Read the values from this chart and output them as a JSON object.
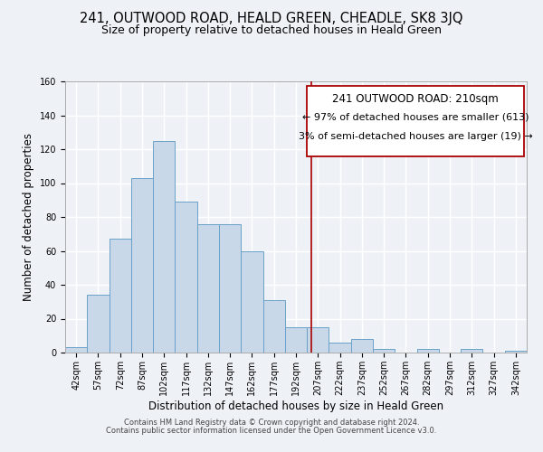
{
  "title": "241, OUTWOOD ROAD, HEALD GREEN, CHEADLE, SK8 3JQ",
  "subtitle": "Size of property relative to detached houses in Heald Green",
  "xlabel": "Distribution of detached houses by size in Heald Green",
  "ylabel": "Number of detached properties",
  "bin_labels": [
    "42sqm",
    "57sqm",
    "72sqm",
    "87sqm",
    "102sqm",
    "117sqm",
    "132sqm",
    "147sqm",
    "162sqm",
    "177sqm",
    "192sqm",
    "207sqm",
    "222sqm",
    "237sqm",
    "252sqm",
    "267sqm",
    "282sqm",
    "297sqm",
    "312sqm",
    "327sqm",
    "342sqm"
  ],
  "bar_values": [
    3,
    34,
    67,
    103,
    125,
    89,
    76,
    76,
    60,
    31,
    15,
    15,
    6,
    8,
    2,
    0,
    2,
    0,
    2,
    0,
    1
  ],
  "bin_edges": [
    42,
    57,
    72,
    87,
    102,
    117,
    132,
    147,
    162,
    177,
    192,
    207,
    222,
    237,
    252,
    267,
    282,
    297,
    312,
    327,
    342,
    357
  ],
  "bar_color": "#c8d8e8",
  "bar_edge_color": "#6aa0c8",
  "vline_x": 210,
  "vline_color": "#aa0000",
  "annotation_box_title": "241 OUTWOOD ROAD: 210sqm",
  "annotation_line1": "← 97% of detached houses are smaller (613)",
  "annotation_line2": "3% of semi-detached houses are larger (19) →",
  "annotation_box_color": "#aa0000",
  "ylim": [
    0,
    160
  ],
  "yticks": [
    0,
    20,
    40,
    60,
    80,
    100,
    120,
    140,
    160
  ],
  "footer1": "Contains HM Land Registry data © Crown copyright and database right 2024.",
  "footer2": "Contains public sector information licensed under the Open Government Licence v3.0.",
  "bg_color": "#eef2f7",
  "grid_color": "#ffffff",
  "title_fontsize": 10.5,
  "subtitle_fontsize": 9,
  "axis_fontsize": 8.5,
  "tick_fontsize": 7,
  "footer_fontsize": 6,
  "annot_fontsize": 8,
  "annot_title_fontsize": 8.5
}
